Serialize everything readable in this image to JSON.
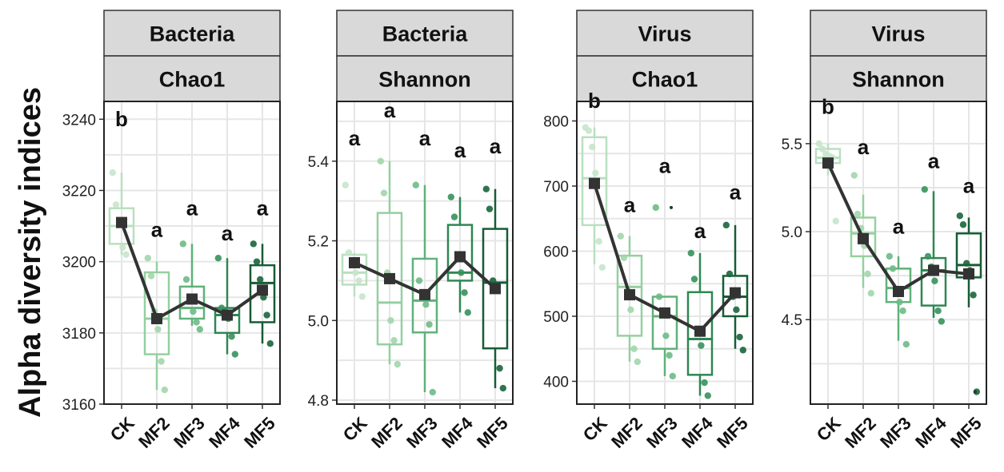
{
  "figure": {
    "ylabel": "Alpha diversity indices"
  },
  "chart_data": [
    {
      "type": "box",
      "strip": [
        "Bacteria",
        "Chao1"
      ],
      "categories": [
        "CK",
        "MF2",
        "MF3",
        "MF4",
        "MF5"
      ],
      "ylim": [
        3160,
        3245
      ],
      "yticks": [
        3160,
        3180,
        3200,
        3220,
        3240
      ],
      "ytick_labels": [
        "3160",
        "3180",
        "3200",
        "3220",
        "3240"
      ],
      "grid": true,
      "letters": [
        "b",
        "a",
        "a",
        "a",
        "a"
      ],
      "letter_y": [
        3238,
        3207,
        3213,
        3206,
        3213
      ],
      "boxes": [
        {
          "q1": 3205,
          "median": 3210,
          "q3": 3215,
          "low": 3202,
          "high": 3225
        },
        {
          "q1": 3174,
          "median": 3184,
          "q3": 3197,
          "low": 3164,
          "high": 3200
        },
        {
          "q1": 3184,
          "median": 3187,
          "q3": 3193,
          "low": 3182,
          "high": 3205
        },
        {
          "q1": 3180,
          "median": 3185,
          "q3": 3187,
          "low": 3174,
          "high": 3201
        },
        {
          "q1": 3183,
          "median": 3194,
          "q3": 3199,
          "low": 3177,
          "high": 3205
        }
      ],
      "points": [
        [
          3225,
          3216,
          3211,
          3204,
          3202
        ],
        [
          3201,
          3196,
          3186,
          3181,
          3172,
          3164
        ],
        [
          3205,
          3195,
          3189,
          3186,
          3183,
          3181
        ],
        [
          3201,
          3187,
          3186,
          3184,
          3179,
          3174
        ],
        [
          3205,
          3200,
          3195,
          3190,
          3185,
          3177
        ]
      ],
      "mean_line": [
        3211,
        3184,
        3189.5,
        3185,
        3192
      ]
    },
    {
      "type": "box",
      "strip": [
        "Bacteria",
        "Shannon"
      ],
      "categories": [
        "CK",
        "MF2",
        "MF3",
        "MF4",
        "MF5"
      ],
      "ylim": [
        4.79,
        5.55
      ],
      "yticks": [
        4.8,
        5.0,
        5.2,
        5.4
      ],
      "ytick_labels": [
        "4.8",
        "5.0",
        "5.2",
        "5.4"
      ],
      "grid": true,
      "letters": [
        "a",
        "a",
        "a",
        "a",
        "a"
      ],
      "letter_y": [
        5.44,
        5.51,
        5.44,
        5.41,
        5.42
      ],
      "boxes": [
        {
          "q1": 5.09,
          "median": 5.12,
          "q3": 5.165,
          "low": 5.06,
          "high": 5.17
        },
        {
          "q1": 4.94,
          "median": 5.045,
          "q3": 5.27,
          "low": 4.89,
          "high": 5.4
        },
        {
          "q1": 4.97,
          "median": 5.05,
          "q3": 5.155,
          "low": 4.82,
          "high": 5.34
        },
        {
          "q1": 5.1,
          "median": 5.12,
          "q3": 5.24,
          "low": 5.02,
          "high": 5.31
        },
        {
          "q1": 4.93,
          "median": 5.095,
          "q3": 5.23,
          "low": 4.83,
          "high": 5.33
        }
      ],
      "points": [
        [
          5.34,
          5.17,
          5.14,
          5.12,
          5.1,
          5.06
        ],
        [
          5.4,
          5.32,
          5.12,
          5.0,
          4.95,
          4.89
        ],
        [
          5.34,
          5.1,
          5.06,
          5.04,
          4.99,
          4.82
        ],
        [
          5.31,
          5.26,
          5.16,
          5.12,
          5.07,
          5.02
        ],
        [
          5.33,
          5.28,
          5.1,
          5.09,
          4.88,
          4.83
        ]
      ],
      "mean_line": [
        5.145,
        5.105,
        5.065,
        5.16,
        5.08
      ]
    },
    {
      "type": "box",
      "strip": [
        "Virus",
        "Chao1"
      ],
      "categories": [
        "CK",
        "MF2",
        "MF3",
        "MF4",
        "MF5"
      ],
      "ylim": [
        365,
        830
      ],
      "yticks": [
        400,
        500,
        600,
        700,
        800
      ],
      "ytick_labels": [
        "400",
        "500",
        "600",
        "700",
        "800"
      ],
      "grid": true,
      "letters": [
        "b",
        "a",
        "a",
        "a",
        "a"
      ],
      "letter_y": [
        820,
        660,
        720,
        620,
        680
      ],
      "boxes": [
        {
          "q1": 640,
          "median": 712,
          "q3": 775,
          "low": 580,
          "high": 790
        },
        {
          "q1": 470,
          "median": 545,
          "q3": 593,
          "low": 430,
          "high": 623
        },
        {
          "q1": 450,
          "median": 500,
          "q3": 530,
          "low": 408,
          "high": 530
        },
        {
          "q1": 410,
          "median": 465,
          "q3": 537,
          "low": 378,
          "high": 597
        },
        {
          "q1": 500,
          "median": 530,
          "q3": 562,
          "low": 450,
          "high": 640
        }
      ],
      "points": [
        [
          790,
          785,
          760,
          720,
          615,
          575
        ],
        [
          623,
          590,
          540,
          510,
          450,
          430
        ],
        [
          667,
          530,
          503,
          470,
          440,
          408
        ],
        [
          597,
          557,
          475,
          455,
          398,
          378
        ],
        [
          640,
          565,
          530,
          510,
          468,
          448
        ]
      ],
      "outliers": [
        null,
        null,
        [
          667
        ],
        null,
        null
      ],
      "mean_line": [
        704,
        533,
        505,
        477,
        536
      ]
    },
    {
      "type": "box",
      "strip": [
        "Virus",
        "Shannon"
      ],
      "categories": [
        "CK",
        "MF2",
        "MF3",
        "MF4",
        "MF5"
      ],
      "ylim": [
        4.02,
        5.74
      ],
      "yticks": [
        4.5,
        5.0,
        5.5
      ],
      "ytick_labels": [
        "4.5",
        "5.0",
        "5.5"
      ],
      "grid": true,
      "letters": [
        "b",
        "a",
        "a",
        "a",
        "a"
      ],
      "letter_y": [
        5.67,
        5.44,
        4.99,
        5.36,
        5.22
      ],
      "boxes": [
        {
          "q1": 5.39,
          "median": 5.42,
          "q3": 5.47,
          "low": 5.32,
          "high": 5.5
        },
        {
          "q1": 4.86,
          "median": 4.99,
          "q3": 5.08,
          "low": 4.68,
          "high": 5.21
        },
        {
          "q1": 4.6,
          "median": 4.68,
          "q3": 4.79,
          "low": 4.38,
          "high": 4.86
        },
        {
          "q1": 4.58,
          "median": 4.78,
          "q3": 4.85,
          "low": 4.51,
          "high": 5.23
        },
        {
          "q1": 4.74,
          "median": 4.81,
          "q3": 4.99,
          "low": 4.57,
          "high": 5.08
        }
      ],
      "points": [
        [
          5.5,
          5.47,
          5.44,
          5.43,
          5.42,
          5.06
        ],
        [
          5.32,
          5.1,
          5.02,
          4.92,
          4.76,
          4.65
        ],
        [
          4.86,
          4.79,
          4.66,
          4.6,
          4.55,
          4.36
        ],
        [
          5.24,
          4.86,
          4.8,
          4.72,
          4.55,
          4.49
        ],
        [
          5.09,
          5.04,
          4.82,
          4.78,
          4.64,
          4.09
        ]
      ],
      "outliers": [
        null,
        null,
        null,
        null,
        [
          4.09
        ]
      ],
      "mean_line": [
        5.39,
        4.96,
        4.66,
        4.78,
        4.76
      ]
    }
  ]
}
